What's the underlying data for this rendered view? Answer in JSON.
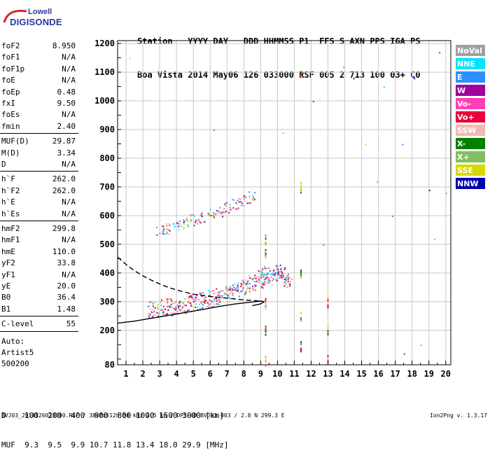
{
  "logo": {
    "company": "Lowell",
    "product": "DIGISONDE"
  },
  "header": {
    "row1": "Station   YYYY DAY   DDD HHMMSS P1  FFS S AXN PPS IGA PS",
    "row2": "Boa Vista 2014 May06 126 033000 RSF 005 2 713 100 03+ C0"
  },
  "params": [
    {
      "label": "foF2",
      "value": "8.950"
    },
    {
      "label": "foF1",
      "value": "N/A"
    },
    {
      "label": "foF1p",
      "value": "N/A"
    },
    {
      "label": "foE",
      "value": "N/A"
    },
    {
      "label": "foEp",
      "value": "0.48"
    },
    {
      "label": "fxI",
      "value": "9.50"
    },
    {
      "label": "foEs",
      "value": "N/A"
    },
    {
      "label": "fmin",
      "value": "2.40"
    },
    {
      "label": "MUF(D)",
      "value": "29.87"
    },
    {
      "label": "M(D)",
      "value": "3.34"
    },
    {
      "label": "D",
      "value": "N/A"
    },
    {
      "label": "h`F",
      "value": "262.0"
    },
    {
      "label": "h`F2",
      "value": "262.0"
    },
    {
      "label": "h`E",
      "value": "N/A"
    },
    {
      "label": "h`Es",
      "value": "N/A"
    },
    {
      "label": "hmF2",
      "value": "299.8"
    },
    {
      "label": "hmF1",
      "value": "N/A"
    },
    {
      "label": "hmE",
      "value": "110.0"
    },
    {
      "label": "yF2",
      "value": "33.8"
    },
    {
      "label": "yF1",
      "value": "N/A"
    },
    {
      "label": "yE",
      "value": "20.0"
    },
    {
      "label": "B0",
      "value": "36.4"
    },
    {
      "label": "B1",
      "value": "1.48"
    },
    {
      "label": "C-level",
      "value": "55"
    }
  ],
  "auto": {
    "line1": "Auto:",
    "line2": "Artist5",
    "line3": "500200"
  },
  "legend": [
    {
      "label": "NoVal",
      "color": "#a0a0a0"
    },
    {
      "label": "NNE",
      "color": "#00e5ff"
    },
    {
      "label": "E",
      "color": "#2f8fff"
    },
    {
      "label": "W",
      "color": "#a000a0"
    },
    {
      "label": "Vo-",
      "color": "#ff3fb4"
    },
    {
      "label": "Vo+",
      "color": "#e8003c"
    },
    {
      "label": "SSW",
      "color": "#f4b8b0"
    },
    {
      "label": "X-",
      "color": "#008000"
    },
    {
      "label": "X+",
      "color": "#7fbf5f"
    },
    {
      "label": "SSE",
      "color": "#d8d800"
    },
    {
      "label": "NNW",
      "color": "#0000b0"
    }
  ],
  "freq_table": {
    "row1": "D    100  200  400  600  800 1000 1500 3000 [km]",
    "row2": "MUF  9.3  9.5  9.9 10.7 11.8 13.4 18.0 29.9 [MHz]"
  },
  "footer": "BVJ03_2014126033000.RSF / 384fx512h 50 kHz 2.5 km / DPS-4D BVJ03 003 / 2.8 N 299.3 E",
  "version": "Ion2Png v. 1.3.17",
  "chart_data": {
    "type": "scatter",
    "title": "",
    "xlabel": "",
    "ylabel": "",
    "xlim": [
      0.5,
      20.3
    ],
    "ylim": [
      80,
      1210
    ],
    "x_ticks": [
      1,
      2,
      3,
      4,
      5,
      6,
      7,
      8,
      9,
      10,
      11,
      12,
      13,
      14,
      15,
      16,
      17,
      18,
      19,
      20
    ],
    "y_ticks": [
      80,
      200,
      300,
      400,
      500,
      600,
      700,
      800,
      900,
      1000,
      1100,
      1200
    ],
    "grid": true,
    "series": [
      {
        "name": "F2 trace",
        "points": [
          [
            2.5,
            275
          ],
          [
            3.0,
            278
          ],
          [
            3.5,
            282
          ],
          [
            4.0,
            286
          ],
          [
            4.5,
            292
          ],
          [
            5.0,
            298
          ],
          [
            5.5,
            305
          ],
          [
            6.0,
            312
          ],
          [
            6.5,
            320
          ],
          [
            7.0,
            330
          ],
          [
            7.5,
            340
          ],
          [
            8.0,
            352
          ],
          [
            8.5,
            365
          ],
          [
            9.0,
            380
          ],
          [
            9.3,
            395
          ]
        ]
      },
      {
        "name": "F2 multiple echo",
        "points": [
          [
            3.0,
            548
          ],
          [
            3.5,
            556
          ],
          [
            4.0,
            566
          ],
          [
            4.5,
            576
          ],
          [
            5.0,
            586
          ],
          [
            5.5,
            596
          ],
          [
            6.0,
            606
          ],
          [
            6.5,
            618
          ],
          [
            7.0,
            630
          ],
          [
            7.5,
            642
          ],
          [
            8.0,
            654
          ],
          [
            8.4,
            665
          ]
        ]
      },
      {
        "name": "X-mode / spread echo",
        "points": [
          [
            9.6,
            380
          ],
          [
            9.8,
            395
          ],
          [
            10.0,
            410
          ],
          [
            10.2,
            400
          ],
          [
            10.4,
            385
          ],
          [
            10.6,
            372
          ]
        ]
      },
      {
        "name": "Vertical streaks",
        "points": [
          [
            9.3,
            520
          ],
          [
            9.3,
            470
          ],
          [
            9.3,
            300
          ],
          [
            9.3,
            200
          ],
          [
            9.3,
            100
          ],
          [
            11.4,
            1100
          ],
          [
            11.4,
            700
          ],
          [
            11.4,
            400
          ],
          [
            11.4,
            250
          ],
          [
            11.4,
            150
          ],
          [
            13.0,
            300
          ],
          [
            13.0,
            200
          ],
          [
            13.0,
            100
          ]
        ]
      },
      {
        "name": "Scattered noise",
        "points": [
          [
            1.2,
            1150
          ],
          [
            2.1,
            1100
          ],
          [
            6.2,
            900
          ],
          [
            10.3,
            890
          ],
          [
            12.1,
            1000
          ],
          [
            13.9,
            1120
          ],
          [
            14.5,
            1080
          ],
          [
            15.2,
            850
          ],
          [
            16.3,
            1050
          ],
          [
            17.4,
            850
          ],
          [
            18.1,
            1080
          ],
          [
            19.6,
            1170
          ],
          [
            19.0,
            690
          ],
          [
            20.0,
            680
          ],
          [
            17.5,
            120
          ],
          [
            18.5,
            150
          ],
          [
            12.7,
            500
          ],
          [
            16.8,
            600
          ],
          [
            15.9,
            720
          ],
          [
            19.3,
            520
          ]
        ]
      }
    ],
    "profile_curves": [
      {
        "name": "profile",
        "style": "solid",
        "points": [
          [
            0.5,
            225
          ],
          [
            1.5,
            232
          ],
          [
            2.5,
            242
          ],
          [
            3.5,
            252
          ],
          [
            4.5,
            262
          ],
          [
            5.5,
            272
          ],
          [
            6.5,
            283
          ],
          [
            7.5,
            292
          ],
          [
            8.5,
            299
          ],
          [
            9.0,
            302
          ],
          [
            9.2,
            300
          ],
          [
            9.0,
            292
          ],
          [
            8.5,
            286
          ]
        ]
      },
      {
        "name": "profile extrapolation",
        "style": "dashed",
        "points": [
          [
            0.5,
            455
          ],
          [
            1.0,
            430
          ],
          [
            1.5,
            408
          ],
          [
            2.0,
            390
          ],
          [
            2.5,
            375
          ],
          [
            3.0,
            362
          ],
          [
            3.5,
            350
          ],
          [
            4.0,
            341
          ],
          [
            4.5,
            333
          ],
          [
            5.0,
            326
          ],
          [
            6.0,
            318
          ],
          [
            7.0,
            312
          ],
          [
            8.0,
            306
          ],
          [
            9.0,
            302
          ]
        ]
      }
    ]
  }
}
